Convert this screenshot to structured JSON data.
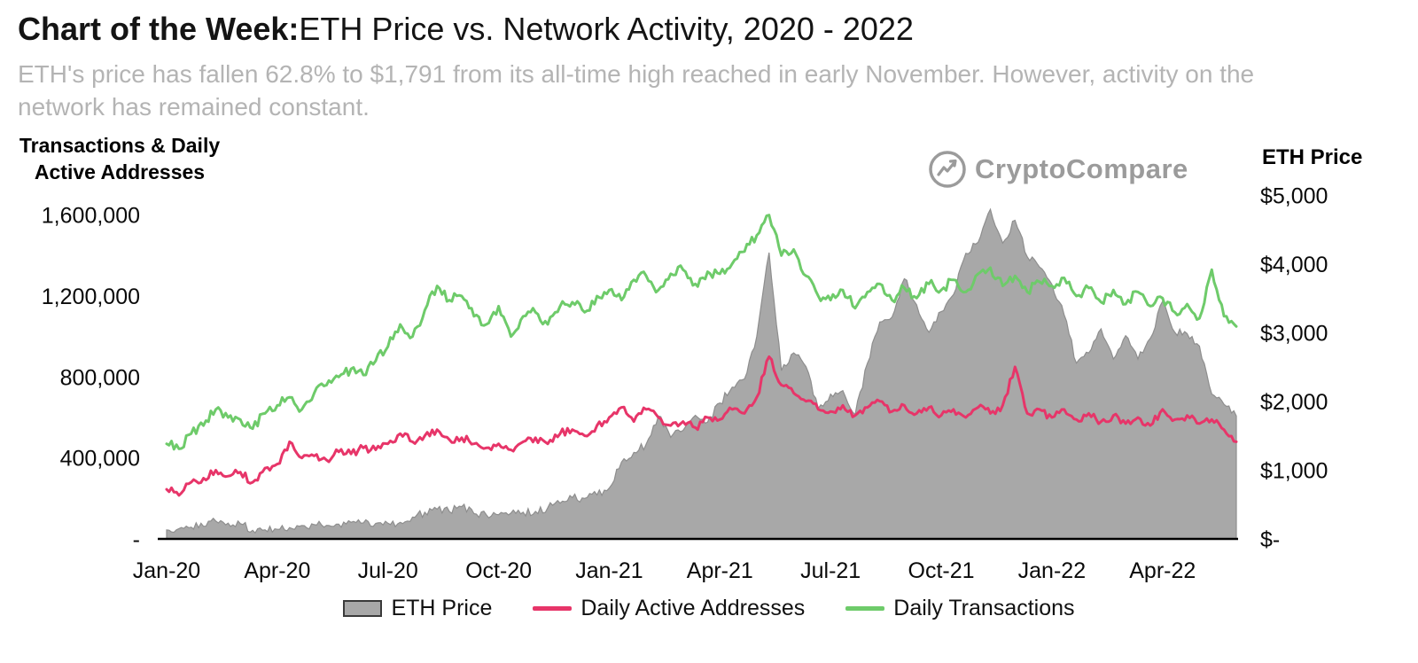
{
  "chart_data": {
    "type": "combo",
    "title_bold": "Chart of the Week:",
    "title_rest": "ETH Price vs. Network Activity, 2020  - 2022",
    "subtitle_lines": [
      "ETH's price has fallen 62.8% to $1,791 from its all-time high reached in early November. However, activity on the",
      "network has remained constant."
    ],
    "left_axis_title_lines": [
      "Transactions & Daily",
      "Active Addresses"
    ],
    "right_axis_title": "ETH Price",
    "watermark": "CryptoCompare",
    "x_tick_labels": [
      "Jan-20",
      "Apr-20",
      "Jul-20",
      "Oct-20",
      "Jan-21",
      "Apr-21",
      "Jul-21",
      "Oct-21",
      "Jan-22",
      "Apr-22"
    ],
    "x_tick_months": [
      0,
      3,
      6,
      9,
      12,
      15,
      18,
      21,
      24,
      27
    ],
    "x_range_months": [
      0,
      29
    ],
    "points_per_month": 3,
    "grid": false,
    "legend_position": "bottom",
    "left_axis": {
      "ticks": [
        0,
        400000,
        800000,
        1200000,
        1600000
      ],
      "tick_labels": [
        "-",
        "400,000",
        "800,000",
        "1,200,000",
        "1,600,000"
      ],
      "max": 1730000
    },
    "right_axis": {
      "ticks": [
        0,
        1000,
        2000,
        3000,
        4000,
        5000
      ],
      "tick_labels": [
        "$-",
        "$1,000",
        "$2,000",
        "$3,000",
        "$4,000",
        "$5,000"
      ],
      "max": 5100
    },
    "series": [
      {
        "id": "eth-price",
        "name": "ETH Price",
        "type": "area",
        "axis": "right",
        "color": "#a8a8a8",
        "edge": "#8e8e8e",
        "jitter": 60,
        "values": [
          130,
          150,
          170,
          185,
          260,
          230,
          222,
          125,
          132,
          140,
          165,
          195,
          208,
          198,
          215,
          242,
          232,
          226,
          228,
          242,
          318,
          388,
          432,
          398,
          470,
          368,
          352,
          352,
          376,
          388,
          400,
          455,
          520,
          600,
          590,
          640,
          740,
          1120,
          1260,
          1380,
          1790,
          1480,
          1580,
          1800,
          1700,
          1980,
          2210,
          2330,
          2950,
          4170,
          2450,
          2710,
          2510,
          1900,
          2110,
          2160,
          1810,
          2560,
          3160,
          3230,
          3790,
          3410,
          3010,
          3310,
          3560,
          4160,
          4320,
          4800,
          4310,
          4640,
          4110,
          3960,
          3710,
          3260,
          2560,
          2710,
          3060,
          2620,
          2960,
          2620,
          2920,
          3460,
          3010,
          2990,
          2810,
          2110,
          1960,
          1791
        ]
      },
      {
        "id": "daily-active-addresses",
        "name": "Daily Active Addresses",
        "type": "line",
        "axis": "left",
        "color": "#e73569",
        "jitter": 20000,
        "values": [
          245000,
          215000,
          280000,
          300000,
          340000,
          310000,
          330000,
          280000,
          350000,
          370000,
          480000,
          400000,
          410000,
          390000,
          430000,
          420000,
          450000,
          440000,
          470000,
          520000,
          480000,
          510000,
          540000,
          490000,
          500000,
          470000,
          450000,
          470000,
          440000,
          480000,
          500000,
          470000,
          520000,
          540000,
          510000,
          560000,
          600000,
          650000,
          580000,
          640000,
          600000,
          560000,
          580000,
          550000,
          600000,
          590000,
          640000,
          620000,
          700000,
          900000,
          760000,
          720000,
          680000,
          640000,
          630000,
          660000,
          610000,
          650000,
          680000,
          630000,
          660000,
          620000,
          650000,
          610000,
          640000,
          600000,
          650000,
          620000,
          660000,
          850000,
          620000,
          640000,
          600000,
          640000,
          590000,
          620000,
          580000,
          610000,
          570000,
          600000,
          560000,
          640000,
          590000,
          610000,
          570000,
          590000,
          540000,
          480000
        ]
      },
      {
        "id": "daily-transactions",
        "name": "Daily Transactions",
        "type": "line",
        "axis": "left",
        "color": "#6ecb6a",
        "jitter": 25000,
        "values": [
          470000,
          445000,
          520000,
          560000,
          640000,
          600000,
          590000,
          545000,
          620000,
          660000,
          700000,
          640000,
          720000,
          760000,
          800000,
          840000,
          810000,
          880000,
          950000,
          1060000,
          1000000,
          1130000,
          1250000,
          1180000,
          1200000,
          1100000,
          1060000,
          1150000,
          1000000,
          1100000,
          1120000,
          1060000,
          1150000,
          1170000,
          1120000,
          1200000,
          1230000,
          1180000,
          1280000,
          1300000,
          1230000,
          1310000,
          1330000,
          1260000,
          1320000,
          1310000,
          1360000,
          1420000,
          1500000,
          1600000,
          1400000,
          1430000,
          1300000,
          1200000,
          1180000,
          1230000,
          1140000,
          1220000,
          1260000,
          1180000,
          1240000,
          1190000,
          1260000,
          1230000,
          1280000,
          1220000,
          1310000,
          1340000,
          1250000,
          1300000,
          1220000,
          1270000,
          1250000,
          1290000,
          1200000,
          1240000,
          1170000,
          1230000,
          1160000,
          1220000,
          1150000,
          1190000,
          1120000,
          1160000,
          1090000,
          1330000,
          1100000,
          1050000
        ]
      }
    ]
  }
}
